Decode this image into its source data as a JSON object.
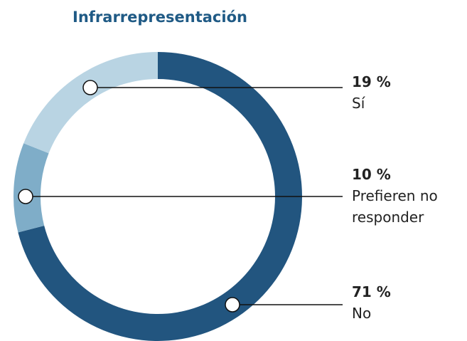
{
  "chart_data": {
    "type": "donut",
    "title": "Infrarrepresentación",
    "categories": [
      "No",
      "Prefieren no responder",
      "Sí"
    ],
    "values": [
      71,
      10,
      19
    ],
    "value_labels": [
      "71 %",
      "10 %",
      "19 %"
    ],
    "colors": [
      "#22557f",
      "#7fadc8",
      "#b9d4e3"
    ]
  }
}
